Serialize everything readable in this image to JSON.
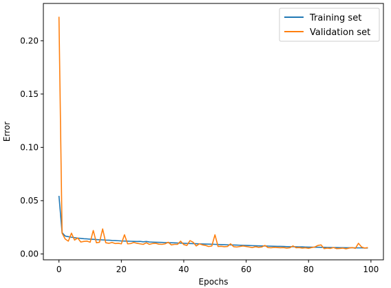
{
  "chart_data": {
    "type": "line",
    "xlabel": "Epochs",
    "ylabel": "Error",
    "xlim": [
      -5,
      104
    ],
    "ylim": [
      -0.0055,
      0.235
    ],
    "x_ticks": [
      0,
      20,
      40,
      60,
      80,
      100
    ],
    "x_tick_labels": [
      "0",
      "20",
      "40",
      "60",
      "80",
      "100"
    ],
    "y_ticks": [
      0.0,
      0.05,
      0.1,
      0.15,
      0.2
    ],
    "y_tick_labels": [
      "0.00",
      "0.05",
      "0.10",
      "0.15",
      "0.20"
    ],
    "grid": false,
    "legend_position": "top-right",
    "series": [
      {
        "name": "Training set",
        "color": "#1f77b4",
        "x": [
          0,
          1,
          2,
          3,
          4,
          5,
          6,
          7,
          8,
          9,
          10,
          11,
          12,
          13,
          14,
          15,
          16,
          17,
          18,
          19,
          20,
          21,
          22,
          23,
          24,
          25,
          26,
          27,
          28,
          29,
          30,
          31,
          32,
          33,
          34,
          35,
          36,
          37,
          38,
          39,
          40,
          41,
          42,
          43,
          44,
          45,
          46,
          47,
          48,
          49,
          50,
          51,
          52,
          53,
          54,
          55,
          56,
          57,
          58,
          59,
          60,
          61,
          62,
          63,
          64,
          65,
          66,
          67,
          68,
          69,
          70,
          71,
          72,
          73,
          74,
          75,
          76,
          77,
          78,
          79,
          80,
          81,
          82,
          83,
          84,
          85,
          86,
          87,
          88,
          89,
          90,
          91,
          92,
          93,
          94,
          95,
          96,
          97,
          98,
          99
        ],
        "values": [
          0.0545,
          0.02,
          0.0168,
          0.0162,
          0.0157,
          0.0153,
          0.0149,
          0.0146,
          0.0143,
          0.0141,
          0.0139,
          0.0137,
          0.0135,
          0.0133,
          0.0132,
          0.013,
          0.0129,
          0.0127,
          0.0126,
          0.0124,
          0.0122,
          0.0121,
          0.012,
          0.0119,
          0.0118,
          0.0117,
          0.0118,
          0.0114,
          0.0117,
          0.0112,
          0.0111,
          0.011,
          0.0109,
          0.0108,
          0.0107,
          0.0106,
          0.0105,
          0.0104,
          0.0103,
          0.0102,
          0.01,
          0.0099,
          0.0098,
          0.0097,
          0.0096,
          0.0095,
          0.0094,
          0.0093,
          0.0092,
          0.0091,
          0.009,
          0.0089,
          0.0088,
          0.0087,
          0.0086,
          0.0085,
          0.0084,
          0.0083,
          0.0082,
          0.0081,
          0.008,
          0.0079,
          0.0078,
          0.0077,
          0.0076,
          0.0075,
          0.0075,
          0.0074,
          0.0073,
          0.0072,
          0.0071,
          0.0071,
          0.007,
          0.0069,
          0.0068,
          0.0068,
          0.0067,
          0.0066,
          0.0066,
          0.0065,
          0.0064,
          0.0064,
          0.0063,
          0.0063,
          0.0062,
          0.0062,
          0.0061,
          0.0061,
          0.006,
          0.006,
          0.0059,
          0.0059,
          0.0058,
          0.0058,
          0.0058,
          0.0057,
          0.0057,
          0.0057,
          0.0056,
          0.0056
        ]
      },
      {
        "name": "Validation set",
        "color": "#ff7f0e",
        "x": [
          0,
          1,
          2,
          3,
          4,
          5,
          6,
          7,
          8,
          9,
          10,
          11,
          12,
          13,
          14,
          15,
          16,
          17,
          18,
          19,
          20,
          21,
          22,
          23,
          24,
          25,
          26,
          27,
          28,
          29,
          30,
          31,
          32,
          33,
          34,
          35,
          36,
          37,
          38,
          39,
          40,
          41,
          42,
          43,
          44,
          45,
          46,
          47,
          48,
          49,
          50,
          51,
          52,
          53,
          54,
          55,
          56,
          57,
          58,
          59,
          60,
          61,
          62,
          63,
          64,
          65,
          66,
          67,
          68,
          69,
          70,
          71,
          72,
          73,
          74,
          75,
          76,
          77,
          78,
          79,
          80,
          81,
          82,
          83,
          84,
          85,
          86,
          87,
          88,
          89,
          90,
          91,
          92,
          93,
          94,
          95,
          96,
          97,
          98,
          99
        ],
        "values": [
          0.2225,
          0.0195,
          0.014,
          0.012,
          0.0195,
          0.013,
          0.015,
          0.0112,
          0.0118,
          0.012,
          0.011,
          0.022,
          0.0105,
          0.011,
          0.0235,
          0.0105,
          0.01,
          0.0108,
          0.0098,
          0.01,
          0.0095,
          0.018,
          0.0095,
          0.0098,
          0.0108,
          0.01,
          0.0095,
          0.009,
          0.0105,
          0.009,
          0.0098,
          0.01,
          0.0092,
          0.009,
          0.0095,
          0.011,
          0.0085,
          0.009,
          0.009,
          0.012,
          0.0088,
          0.008,
          0.0125,
          0.011,
          0.0075,
          0.0095,
          0.0085,
          0.008,
          0.007,
          0.0075,
          0.018,
          0.007,
          0.0072,
          0.0068,
          0.007,
          0.0095,
          0.0068,
          0.0065,
          0.007,
          0.0075,
          0.007,
          0.0065,
          0.006,
          0.0068,
          0.0062,
          0.0065,
          0.008,
          0.006,
          0.0058,
          0.0062,
          0.006,
          0.0058,
          0.006,
          0.0055,
          0.0058,
          0.0075,
          0.0058,
          0.006,
          0.0055,
          0.0058,
          0.0052,
          0.006,
          0.0065,
          0.008,
          0.0085,
          0.005,
          0.0055,
          0.0052,
          0.006,
          0.005,
          0.0052,
          0.0055,
          0.0048,
          0.0055,
          0.006,
          0.0052,
          0.01,
          0.0065,
          0.0055,
          0.006
        ]
      }
    ]
  }
}
